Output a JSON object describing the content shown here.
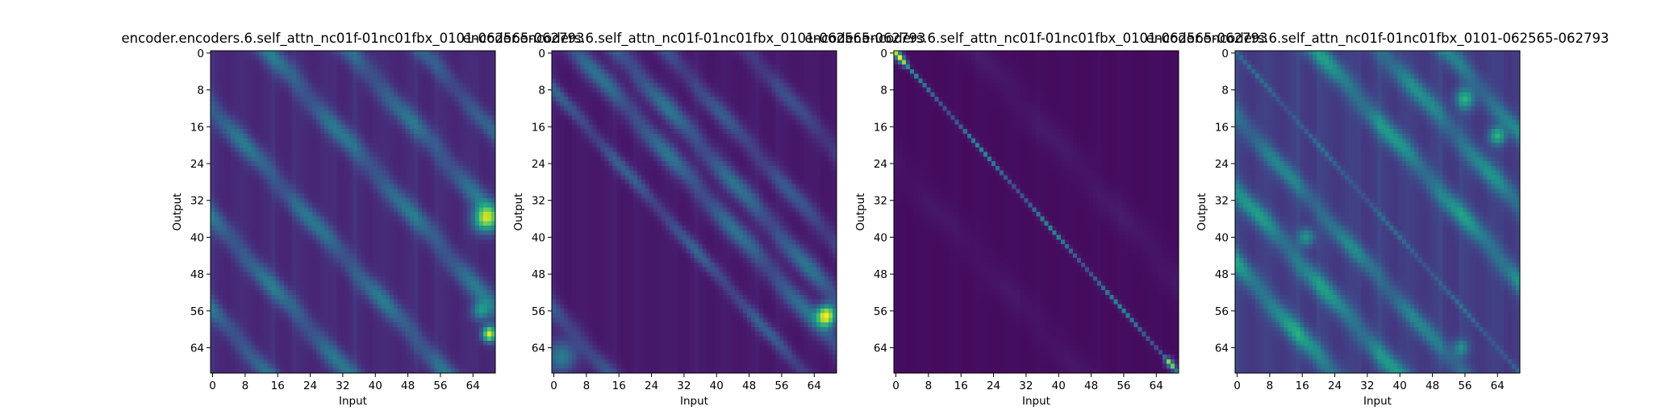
{
  "figure": {
    "background": "#ffffff",
    "colormap": "viridis"
  },
  "chart_data": [
    {
      "type": "heatmap",
      "title": "encoder.encoders.6.self_attn_nc01f-01nc01fbx_0101-062565-062793",
      "xlabel": "Input",
      "ylabel": "Output",
      "rows": 70,
      "cols": 70,
      "x_ticks": [
        "0",
        "8",
        "16",
        "24",
        "32",
        "40",
        "48",
        "56",
        "64"
      ],
      "y_ticks": [
        "0",
        "8",
        "16",
        "24",
        "32",
        "40",
        "48",
        "56",
        "64"
      ],
      "pattern": {
        "base": 0.1,
        "vcol": 0.05,
        "bands": [
          {
            "offset": -12,
            "width": 2.2,
            "amp": 0.3
          },
          {
            "offset": -36,
            "width": 2.2,
            "amp": 0.3
          },
          {
            "offset": -56,
            "width": 2.0,
            "amp": 0.28
          },
          {
            "offset": 14,
            "width": 2.3,
            "amp": 0.3
          },
          {
            "offset": 34,
            "width": 2.3,
            "amp": 0.28
          },
          {
            "offset": 52,
            "width": 2.0,
            "amp": 0.22
          }
        ],
        "spots": [
          {
            "r": 36,
            "c": 67,
            "amp": 0.75,
            "sigma": 2.0
          },
          {
            "r": 61,
            "c": 68,
            "amp": 0.85,
            "sigma": 1.2
          },
          {
            "r": 56,
            "c": 66,
            "amp": 0.4,
            "sigma": 1.5
          }
        ]
      }
    },
    {
      "type": "heatmap",
      "title": "encoder.encoders.6.self_attn_nc01f-01nc01fbx_0101-062565-062793",
      "xlabel": "Input",
      "ylabel": "Output",
      "rows": 70,
      "cols": 70,
      "x_ticks": [
        "0",
        "8",
        "16",
        "24",
        "32",
        "40",
        "48",
        "56",
        "64"
      ],
      "y_ticks": [
        "0",
        "8",
        "16",
        "24",
        "32",
        "40",
        "48",
        "56",
        "64"
      ],
      "pattern": {
        "base": 0.06,
        "vcol": 0.03,
        "bands": [
          {
            "offset": -8,
            "width": 1.5,
            "amp": 0.25
          },
          {
            "offset": 6,
            "width": 2.2,
            "amp": 0.32
          },
          {
            "offset": 16,
            "width": 2.2,
            "amp": 0.32
          },
          {
            "offset": 28,
            "width": 2.0,
            "amp": 0.22
          },
          {
            "offset": 48,
            "width": 2.0,
            "amp": 0.18
          },
          {
            "offset": -56,
            "width": 2.0,
            "amp": 0.22
          }
        ],
        "spots": [
          {
            "r": 57,
            "c": 67,
            "amp": 0.9,
            "sigma": 1.6
          },
          {
            "r": 66,
            "c": 2,
            "amp": 0.35,
            "sigma": 2.5
          }
        ]
      }
    },
    {
      "type": "heatmap",
      "title": "encoder.encoders.6.self_attn_nc01f-01nc01fbx_0101-062565-062793",
      "xlabel": "Input",
      "ylabel": "Output",
      "rows": 70,
      "cols": 70,
      "x_ticks": [
        "0",
        "8",
        "16",
        "24",
        "32",
        "40",
        "48",
        "56",
        "64"
      ],
      "y_ticks": [
        "0",
        "8",
        "16",
        "24",
        "32",
        "40",
        "48",
        "56",
        "64"
      ],
      "pattern": {
        "base": 0.03,
        "vcol": 0.01,
        "bands": [
          {
            "offset": 0,
            "width": 0.45,
            "amp": 0.42
          },
          {
            "offset": 20,
            "width": 3.0,
            "amp": 0.04
          },
          {
            "offset": -24,
            "width": 3.0,
            "amp": 0.03
          }
        ],
        "spots": [
          {
            "r": 0,
            "c": 0,
            "amp": 0.5,
            "sigma": 0.8
          },
          {
            "r": 1,
            "c": 1,
            "amp": 0.45,
            "sigma": 0.7
          },
          {
            "r": 2,
            "c": 2,
            "amp": 0.35,
            "sigma": 0.7
          },
          {
            "r": 67,
            "c": 67,
            "amp": 0.45,
            "sigma": 0.7
          },
          {
            "r": 68,
            "c": 68,
            "amp": 0.35,
            "sigma": 0.7
          }
        ]
      }
    },
    {
      "type": "heatmap",
      "title": "encoder.encoders.6.self_attn_nc01f-01nc01fbx_0101-062565-062793",
      "xlabel": "Input",
      "ylabel": "Output",
      "rows": 70,
      "cols": 70,
      "x_ticks": [
        "0",
        "8",
        "16",
        "24",
        "32",
        "40",
        "48",
        "56",
        "64"
      ],
      "y_ticks": [
        "0",
        "8",
        "16",
        "24",
        "32",
        "40",
        "48",
        "56",
        "64"
      ],
      "pattern": {
        "base": 0.16,
        "vcol": 0.06,
        "bands": [
          {
            "offset": -46,
            "width": 2.2,
            "amp": 0.42
          },
          {
            "offset": -30,
            "width": 2.2,
            "amp": 0.38
          },
          {
            "offset": -14,
            "width": 2.0,
            "amp": 0.3
          },
          {
            "offset": 0,
            "width": 0.6,
            "amp": 0.18
          },
          {
            "offset": 20,
            "width": 2.2,
            "amp": 0.38
          },
          {
            "offset": 36,
            "width": 2.2,
            "amp": 0.34
          },
          {
            "offset": 52,
            "width": 2.0,
            "amp": 0.3
          }
        ],
        "spots": [
          {
            "r": 10,
            "c": 56,
            "amp": 0.45,
            "sigma": 1.6
          },
          {
            "r": 18,
            "c": 64,
            "amp": 0.45,
            "sigma": 1.4
          },
          {
            "r": 40,
            "c": 17,
            "amp": 0.35,
            "sigma": 1.4
          },
          {
            "r": 64,
            "c": 55,
            "amp": 0.3,
            "sigma": 1.3
          }
        ]
      }
    }
  ]
}
